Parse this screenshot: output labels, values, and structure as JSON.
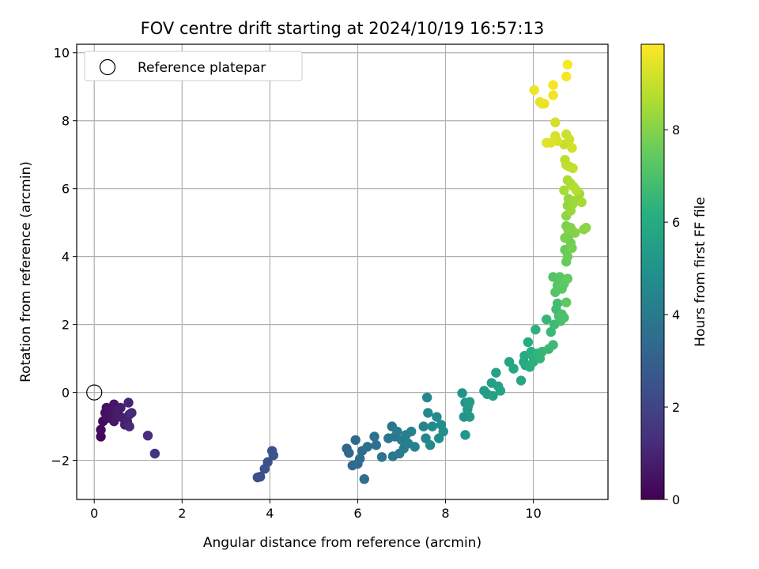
{
  "chart_data": {
    "type": "scatter",
    "title": "FOV centre drift starting at 2024/10/19 16:57:13",
    "xlabel": "Angular distance from reference (arcmin)",
    "ylabel": "Rotation from reference (arcmin)",
    "xlim": [
      -0.4,
      11.7
    ],
    "ylim": [
      -3.15,
      10.25
    ],
    "xticks": [
      0,
      2,
      4,
      6,
      8,
      10
    ],
    "yticks": [
      -2,
      0,
      2,
      4,
      6,
      8,
      10
    ],
    "grid": true,
    "legend": {
      "placement": "upper-left",
      "entries": [
        "Reference platepar"
      ]
    },
    "reference_point": {
      "x": 0,
      "y": 0,
      "label": "Reference platepar"
    },
    "colorbar": {
      "label": "Hours from first FF file",
      "min": 0,
      "max": 9.85,
      "ticks": [
        0,
        2,
        4,
        6,
        8
      ],
      "colormap": "viridis"
    },
    "series": [
      {
        "points": [
          [
            0.15,
            -1.3,
            0.15
          ],
          [
            0.15,
            -1.1,
            0.25
          ],
          [
            0.2,
            -0.85,
            0.3
          ],
          [
            0.25,
            -0.6,
            0.35
          ],
          [
            0.28,
            -0.45,
            0.4
          ],
          [
            0.3,
            -0.75,
            0.45
          ],
          [
            0.35,
            -0.55,
            0.5
          ],
          [
            0.4,
            -0.7,
            0.55
          ],
          [
            0.45,
            -0.35,
            0.6
          ],
          [
            0.45,
            -0.85,
            0.65
          ],
          [
            0.5,
            -0.5,
            0.7
          ],
          [
            0.55,
            -0.65,
            0.75
          ],
          [
            0.6,
            -0.45,
            0.8
          ],
          [
            0.65,
            -0.75,
            0.85
          ],
          [
            0.7,
            -0.95,
            0.9
          ],
          [
            0.75,
            -0.85,
            0.95
          ],
          [
            0.78,
            -0.3,
            1.0
          ],
          [
            0.8,
            -0.65,
            1.05
          ],
          [
            0.8,
            -1.0,
            1.1
          ],
          [
            0.85,
            -0.6,
            1.15
          ],
          [
            1.22,
            -1.27,
            1.3
          ],
          [
            1.38,
            -1.8,
            1.45
          ],
          [
            3.72,
            -2.5,
            2.3
          ],
          [
            3.78,
            -2.48,
            2.35
          ],
          [
            3.88,
            -2.25,
            2.4
          ],
          [
            3.95,
            -2.05,
            2.45
          ],
          [
            4.05,
            -1.72,
            2.5
          ],
          [
            4.08,
            -1.85,
            2.55
          ],
          [
            5.75,
            -1.65,
            3.2
          ],
          [
            5.8,
            -1.78,
            3.25
          ],
          [
            5.88,
            -2.15,
            3.3
          ],
          [
            5.95,
            -1.4,
            3.35
          ],
          [
            6.0,
            -2.1,
            3.4
          ],
          [
            6.05,
            -1.95,
            3.45
          ],
          [
            6.1,
            -1.72,
            3.5
          ],
          [
            6.15,
            -2.55,
            3.55
          ],
          [
            6.22,
            -1.6,
            3.6
          ],
          [
            6.38,
            -1.3,
            3.65
          ],
          [
            6.42,
            -1.55,
            3.7
          ],
          [
            6.55,
            -1.9,
            3.75
          ],
          [
            6.7,
            -1.35,
            3.8
          ],
          [
            6.78,
            -1.0,
            3.85
          ],
          [
            6.8,
            -1.88,
            3.9
          ],
          [
            6.85,
            -1.3,
            3.95
          ],
          [
            6.9,
            -1.15,
            4.0
          ],
          [
            6.95,
            -1.8,
            4.05
          ],
          [
            7.0,
            -1.4,
            4.1
          ],
          [
            7.05,
            -1.65,
            4.15
          ],
          [
            7.1,
            -1.25,
            4.2
          ],
          [
            7.15,
            -1.5,
            4.25
          ],
          [
            7.22,
            -1.15,
            4.3
          ],
          [
            7.3,
            -1.6,
            4.35
          ],
          [
            7.5,
            -1.0,
            4.4
          ],
          [
            7.55,
            -1.35,
            4.45
          ],
          [
            7.58,
            -0.15,
            4.5
          ],
          [
            7.6,
            -0.6,
            4.55
          ],
          [
            7.65,
            -1.55,
            4.6
          ],
          [
            7.7,
            -1.0,
            4.65
          ],
          [
            7.8,
            -0.72,
            4.7
          ],
          [
            7.85,
            -1.35,
            4.75
          ],
          [
            7.9,
            -0.95,
            4.8
          ],
          [
            7.95,
            -1.15,
            4.85
          ],
          [
            8.38,
            -0.02,
            5.0
          ],
          [
            8.42,
            -0.72,
            5.05
          ],
          [
            8.45,
            -0.3,
            5.1
          ],
          [
            8.45,
            -1.25,
            5.15
          ],
          [
            8.5,
            -0.5,
            5.2
          ],
          [
            8.52,
            -0.38,
            5.25
          ],
          [
            8.55,
            -0.72,
            5.3
          ],
          [
            8.55,
            -0.28,
            5.35
          ],
          [
            8.88,
            0.05,
            5.4
          ],
          [
            8.95,
            -0.05,
            5.45
          ],
          [
            9.05,
            0.28,
            5.5
          ],
          [
            9.08,
            -0.1,
            5.55
          ],
          [
            9.15,
            0.58,
            5.6
          ],
          [
            9.2,
            0.18,
            5.65
          ],
          [
            9.25,
            0.05,
            5.7
          ],
          [
            9.45,
            0.9,
            5.75
          ],
          [
            9.55,
            0.7,
            5.8
          ],
          [
            9.72,
            0.35,
            5.85
          ],
          [
            9.78,
            0.9,
            5.9
          ],
          [
            9.8,
            1.08,
            5.95
          ],
          [
            9.82,
            0.8,
            6.0
          ],
          [
            9.88,
            1.48,
            6.05
          ],
          [
            9.92,
            0.75,
            6.1
          ],
          [
            9.95,
            1.2,
            6.15
          ],
          [
            10.0,
            1.05,
            6.2
          ],
          [
            10.0,
            0.9,
            6.25
          ],
          [
            10.05,
            1.85,
            6.3
          ],
          [
            10.1,
            1.15,
            6.35
          ],
          [
            10.15,
            1.0,
            6.4
          ],
          [
            10.2,
            1.2,
            6.45
          ],
          [
            10.3,
            2.15,
            6.5
          ],
          [
            10.35,
            1.28,
            6.55
          ],
          [
            10.4,
            1.78,
            6.6
          ],
          [
            10.45,
            1.4,
            6.65
          ],
          [
            10.48,
            2.0,
            6.7
          ],
          [
            10.52,
            2.45,
            6.75
          ],
          [
            10.55,
            2.62,
            6.8
          ],
          [
            10.58,
            2.25,
            6.85
          ],
          [
            10.62,
            2.1,
            6.9
          ],
          [
            10.65,
            2.3,
            6.95
          ],
          [
            10.7,
            2.2,
            7.0
          ],
          [
            10.45,
            3.4,
            7.1
          ],
          [
            10.5,
            2.95,
            7.15
          ],
          [
            10.55,
            3.15,
            7.2
          ],
          [
            10.6,
            3.4,
            7.25
          ],
          [
            10.65,
            3.05,
            7.3
          ],
          [
            10.7,
            3.2,
            7.35
          ],
          [
            10.75,
            2.65,
            7.4
          ],
          [
            10.78,
            3.35,
            7.45
          ],
          [
            10.75,
            3.85,
            7.5
          ],
          [
            10.72,
            4.2,
            7.55
          ],
          [
            10.78,
            4.0,
            7.6
          ],
          [
            10.8,
            4.6,
            7.65
          ],
          [
            10.85,
            4.4,
            7.7
          ],
          [
            10.88,
            4.25,
            7.75
          ],
          [
            10.72,
            4.55,
            7.8
          ],
          [
            10.75,
            4.9,
            7.85
          ],
          [
            10.8,
            4.75,
            7.9
          ],
          [
            10.85,
            4.85,
            7.95
          ],
          [
            10.95,
            4.7,
            8.0
          ],
          [
            11.15,
            4.8,
            8.05
          ],
          [
            11.2,
            4.85,
            8.1
          ],
          [
            10.75,
            5.2,
            8.15
          ],
          [
            10.78,
            5.5,
            8.2
          ],
          [
            10.8,
            5.7,
            8.25
          ],
          [
            10.85,
            5.35,
            8.3
          ],
          [
            10.9,
            5.55,
            8.35
          ],
          [
            10.95,
            5.65,
            8.4
          ],
          [
            11.05,
            5.85,
            8.45
          ],
          [
            11.1,
            5.6,
            8.5
          ],
          [
            10.7,
            5.95,
            8.55
          ],
          [
            10.78,
            6.25,
            8.6
          ],
          [
            10.85,
            6.15,
            8.65
          ],
          [
            10.92,
            6.05,
            8.7
          ],
          [
            10.98,
            5.95,
            8.75
          ],
          [
            10.72,
            6.85,
            8.8
          ],
          [
            10.75,
            6.7,
            8.85
          ],
          [
            10.82,
            6.65,
            8.9
          ],
          [
            10.9,
            6.6,
            8.95
          ],
          [
            10.7,
            7.3,
            9.0
          ],
          [
            10.75,
            7.6,
            9.05
          ],
          [
            10.82,
            7.45,
            9.1
          ],
          [
            10.88,
            7.2,
            9.15
          ],
          [
            10.5,
            7.95,
            9.2
          ],
          [
            10.5,
            7.55,
            9.25
          ],
          [
            10.55,
            7.4,
            9.3
          ],
          [
            10.4,
            7.35,
            9.35
          ],
          [
            10.3,
            7.35,
            9.4
          ],
          [
            10.15,
            8.55,
            9.45
          ],
          [
            10.2,
            8.5,
            9.5
          ],
          [
            10.25,
            8.5,
            9.55
          ],
          [
            10.02,
            8.9,
            9.6
          ],
          [
            10.45,
            8.75,
            9.65
          ],
          [
            10.45,
            9.05,
            9.7
          ],
          [
            10.75,
            9.3,
            9.75
          ],
          [
            10.78,
            9.65,
            9.8
          ]
        ]
      }
    ]
  }
}
